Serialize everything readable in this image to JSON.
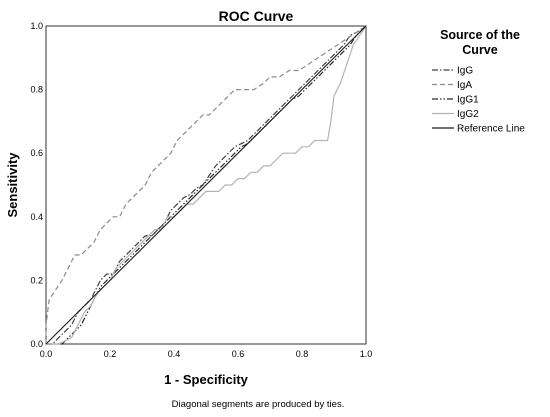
{
  "chart_data": {
    "type": "line",
    "title": "ROC Curve",
    "xlabel": "1 - Specificity",
    "ylabel": "Sensitivity",
    "xlim": [
      0,
      1
    ],
    "ylim": [
      0,
      1
    ],
    "x_ticks": [
      "0.0",
      "0.2",
      "0.4",
      "0.6",
      "0.8",
      "1.0"
    ],
    "y_ticks": [
      "0.0",
      "0.2",
      "0.4",
      "0.6",
      "0.8",
      "1.0"
    ],
    "legend_title": "Source of the Curve",
    "legend_position": "right",
    "footnote": "Diagonal segments are produced by ties.",
    "series": [
      {
        "name": "IgG",
        "style": "dash-dot",
        "color": "#404040",
        "points": [
          [
            0,
            0
          ],
          [
            0.02,
            0
          ],
          [
            0.04,
            0.02
          ],
          [
            0.06,
            0.04
          ],
          [
            0.08,
            0.06
          ],
          [
            0.1,
            0.1
          ],
          [
            0.12,
            0.12
          ],
          [
            0.14,
            0.14
          ],
          [
            0.15,
            0.16
          ],
          [
            0.17,
            0.2
          ],
          [
            0.19,
            0.22
          ],
          [
            0.21,
            0.22
          ],
          [
            0.23,
            0.26
          ],
          [
            0.25,
            0.28
          ],
          [
            0.27,
            0.3
          ],
          [
            0.29,
            0.32
          ],
          [
            0.31,
            0.34
          ],
          [
            0.33,
            0.34
          ],
          [
            0.35,
            0.36
          ],
          [
            0.37,
            0.38
          ],
          [
            0.39,
            0.42
          ],
          [
            0.41,
            0.44
          ],
          [
            0.43,
            0.46
          ],
          [
            0.45,
            0.47
          ],
          [
            0.47,
            0.49
          ],
          [
            0.49,
            0.5
          ],
          [
            0.51,
            0.53
          ],
          [
            0.53,
            0.56
          ],
          [
            0.55,
            0.58
          ],
          [
            0.57,
            0.6
          ],
          [
            0.59,
            0.62
          ],
          [
            0.61,
            0.63
          ],
          [
            0.63,
            0.64
          ],
          [
            0.65,
            0.66
          ],
          [
            0.67,
            0.68
          ],
          [
            0.69,
            0.7
          ],
          [
            0.71,
            0.72
          ],
          [
            0.73,
            0.74
          ],
          [
            0.75,
            0.76
          ],
          [
            0.77,
            0.78
          ],
          [
            0.79,
            0.8
          ],
          [
            0.81,
            0.82
          ],
          [
            0.83,
            0.84
          ],
          [
            0.85,
            0.86
          ],
          [
            0.87,
            0.88
          ],
          [
            0.89,
            0.9
          ],
          [
            0.91,
            0.92
          ],
          [
            0.93,
            0.94
          ],
          [
            0.95,
            0.97
          ],
          [
            0.97,
            0.98
          ],
          [
            1,
            1
          ]
        ]
      },
      {
        "name": "IgA",
        "style": "dashed",
        "color": "#8c8c8c",
        "points": [
          [
            0,
            0
          ],
          [
            0,
            0.06
          ],
          [
            0.01,
            0.14
          ],
          [
            0.03,
            0.17
          ],
          [
            0.05,
            0.2
          ],
          [
            0.07,
            0.24
          ],
          [
            0.09,
            0.28
          ],
          [
            0.11,
            0.28
          ],
          [
            0.13,
            0.3
          ],
          [
            0.15,
            0.32
          ],
          [
            0.17,
            0.36
          ],
          [
            0.19,
            0.38
          ],
          [
            0.21,
            0.4
          ],
          [
            0.23,
            0.4
          ],
          [
            0.25,
            0.44
          ],
          [
            0.27,
            0.46
          ],
          [
            0.29,
            0.48
          ],
          [
            0.31,
            0.5
          ],
          [
            0.33,
            0.54
          ],
          [
            0.35,
            0.56
          ],
          [
            0.37,
            0.58
          ],
          [
            0.39,
            0.6
          ],
          [
            0.41,
            0.64
          ],
          [
            0.43,
            0.66
          ],
          [
            0.45,
            0.68
          ],
          [
            0.47,
            0.7
          ],
          [
            0.49,
            0.72
          ],
          [
            0.51,
            0.72
          ],
          [
            0.53,
            0.74
          ],
          [
            0.55,
            0.76
          ],
          [
            0.57,
            0.78
          ],
          [
            0.59,
            0.8
          ],
          [
            0.62,
            0.8
          ],
          [
            0.65,
            0.8
          ],
          [
            0.68,
            0.82
          ],
          [
            0.7,
            0.84
          ],
          [
            0.73,
            0.84
          ],
          [
            0.76,
            0.86
          ],
          [
            0.79,
            0.86
          ],
          [
            0.82,
            0.88
          ],
          [
            0.85,
            0.9
          ],
          [
            0.88,
            0.92
          ],
          [
            0.91,
            0.94
          ],
          [
            0.94,
            0.96
          ],
          [
            0.97,
            0.98
          ],
          [
            1,
            1
          ]
        ]
      },
      {
        "name": "IgG1",
        "style": "dash-dot-dot",
        "color": "#2a2a2a",
        "points": [
          [
            0,
            0
          ],
          [
            0.03,
            0
          ],
          [
            0.05,
            0
          ],
          [
            0.07,
            0.02
          ],
          [
            0.09,
            0.04
          ],
          [
            0.11,
            0.06
          ],
          [
            0.13,
            0.1
          ],
          [
            0.15,
            0.14
          ],
          [
            0.17,
            0.18
          ],
          [
            0.19,
            0.2
          ],
          [
            0.21,
            0.22
          ],
          [
            0.23,
            0.24
          ],
          [
            0.25,
            0.26
          ],
          [
            0.27,
            0.28
          ],
          [
            0.29,
            0.3
          ],
          [
            0.31,
            0.32
          ],
          [
            0.33,
            0.34
          ],
          [
            0.35,
            0.36
          ],
          [
            0.37,
            0.38
          ],
          [
            0.39,
            0.4
          ],
          [
            0.41,
            0.42
          ],
          [
            0.43,
            0.44
          ],
          [
            0.45,
            0.46
          ],
          [
            0.47,
            0.48
          ],
          [
            0.49,
            0.5
          ],
          [
            0.51,
            0.52
          ],
          [
            0.53,
            0.54
          ],
          [
            0.55,
            0.56
          ],
          [
            0.57,
            0.58
          ],
          [
            0.59,
            0.6
          ],
          [
            0.61,
            0.62
          ],
          [
            0.63,
            0.63
          ],
          [
            0.65,
            0.65
          ],
          [
            0.67,
            0.67
          ],
          [
            0.69,
            0.69
          ],
          [
            0.71,
            0.71
          ],
          [
            0.73,
            0.73
          ],
          [
            0.75,
            0.75
          ],
          [
            0.77,
            0.77
          ],
          [
            0.79,
            0.78
          ],
          [
            0.81,
            0.8
          ],
          [
            0.83,
            0.82
          ],
          [
            0.85,
            0.84
          ],
          [
            0.87,
            0.86
          ],
          [
            0.89,
            0.88
          ],
          [
            0.91,
            0.9
          ],
          [
            0.93,
            0.92
          ],
          [
            0.95,
            0.94
          ],
          [
            0.97,
            0.97
          ],
          [
            1,
            1
          ]
        ]
      },
      {
        "name": "IgG2",
        "style": "solid",
        "color": "#b3b3b3",
        "points": [
          [
            0,
            0
          ],
          [
            0.04,
            0
          ],
          [
            0.08,
            0.02
          ],
          [
            0.1,
            0.06
          ],
          [
            0.12,
            0.1
          ],
          [
            0.14,
            0.12
          ],
          [
            0.16,
            0.16
          ],
          [
            0.18,
            0.18
          ],
          [
            0.2,
            0.2
          ],
          [
            0.22,
            0.24
          ],
          [
            0.24,
            0.26
          ],
          [
            0.26,
            0.28
          ],
          [
            0.28,
            0.3
          ],
          [
            0.3,
            0.32
          ],
          [
            0.32,
            0.34
          ],
          [
            0.34,
            0.36
          ],
          [
            0.36,
            0.36
          ],
          [
            0.38,
            0.4
          ],
          [
            0.4,
            0.4
          ],
          [
            0.42,
            0.42
          ],
          [
            0.44,
            0.44
          ],
          [
            0.46,
            0.44
          ],
          [
            0.48,
            0.46
          ],
          [
            0.5,
            0.48
          ],
          [
            0.52,
            0.48
          ],
          [
            0.54,
            0.48
          ],
          [
            0.56,
            0.5
          ],
          [
            0.58,
            0.5
          ],
          [
            0.6,
            0.52
          ],
          [
            0.62,
            0.52
          ],
          [
            0.64,
            0.54
          ],
          [
            0.66,
            0.54
          ],
          [
            0.68,
            0.56
          ],
          [
            0.7,
            0.56
          ],
          [
            0.72,
            0.58
          ],
          [
            0.74,
            0.6
          ],
          [
            0.76,
            0.6
          ],
          [
            0.78,
            0.6
          ],
          [
            0.8,
            0.62
          ],
          [
            0.82,
            0.62
          ],
          [
            0.84,
            0.64
          ],
          [
            0.86,
            0.64
          ],
          [
            0.88,
            0.64
          ],
          [
            0.89,
            0.7
          ],
          [
            0.9,
            0.78
          ],
          [
            0.92,
            0.82
          ],
          [
            0.94,
            0.88
          ],
          [
            0.96,
            0.94
          ],
          [
            1,
            1
          ]
        ]
      },
      {
        "name": "Reference Line",
        "style": "solid",
        "color": "#1a1a1a",
        "points": [
          [
            0,
            0
          ],
          [
            1,
            1
          ]
        ]
      }
    ]
  }
}
